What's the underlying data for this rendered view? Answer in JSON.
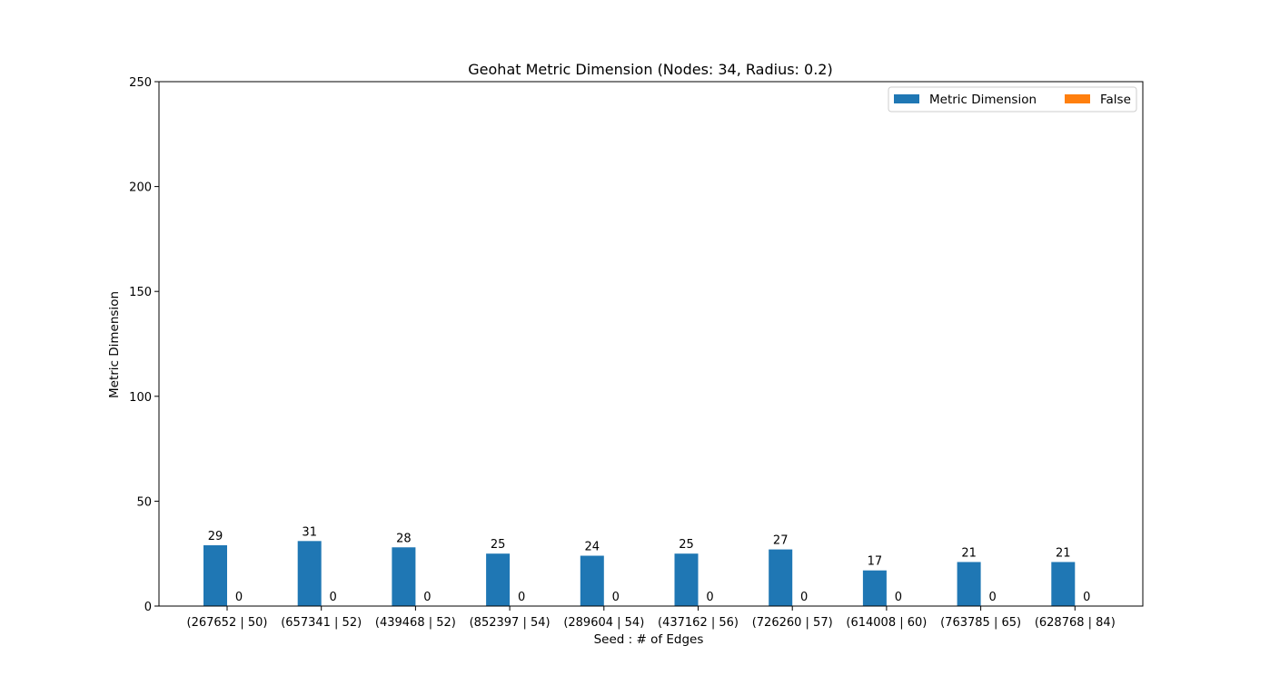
{
  "chart_data": {
    "type": "bar",
    "title": "Geohat Metric Dimension (Nodes: 34, Radius: 0.2)",
    "xlabel": "Seed : # of Edges",
    "ylabel": "Metric Dimension",
    "ylim": [
      0,
      250
    ],
    "yticks": [
      0,
      50,
      100,
      150,
      200,
      250
    ],
    "categories": [
      "(267652 | 50)",
      "(657341 | 52)",
      "(439468 | 52)",
      "(852397 | 54)",
      "(289604 | 54)",
      "(437162 | 56)",
      "(726260 | 57)",
      "(614008 | 60)",
      "(763785 | 65)",
      "(628768 | 84)"
    ],
    "series": [
      {
        "name": "Metric Dimension",
        "color": "#1f77b4",
        "values": [
          29,
          31,
          28,
          25,
          24,
          25,
          27,
          17,
          21,
          21
        ]
      },
      {
        "name": "False",
        "color": "#ff7f0e",
        "values": [
          0,
          0,
          0,
          0,
          0,
          0,
          0,
          0,
          0,
          0
        ]
      }
    ],
    "legend": {
      "position": "top-right",
      "columns": 2
    },
    "grid": false,
    "data_labels": true
  }
}
